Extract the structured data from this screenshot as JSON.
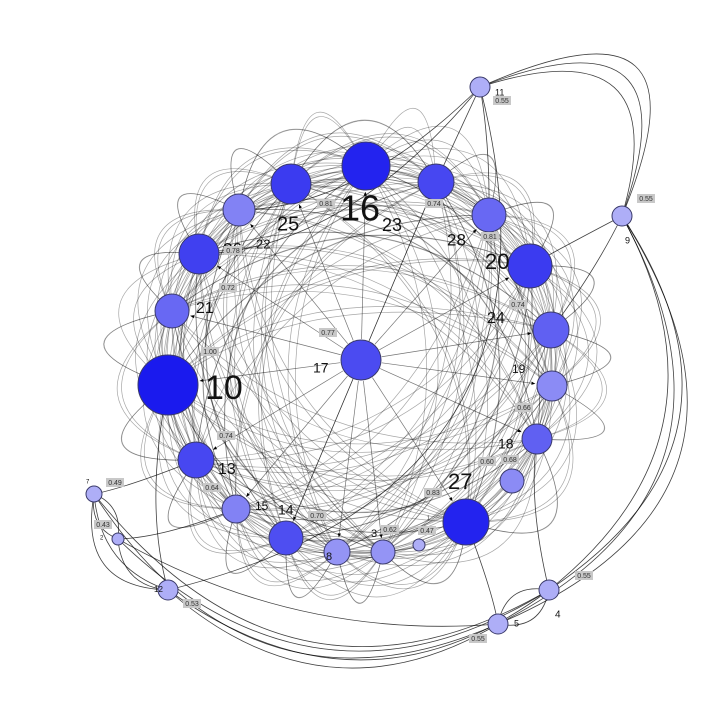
{
  "nodes": [
    {
      "id": "16",
      "label": "16",
      "weight": 0.95
    },
    {
      "id": "23",
      "label": "23",
      "weight": 0.74
    },
    {
      "id": "28",
      "label": "28",
      "weight": 0.55
    },
    {
      "id": "20",
      "label": "20",
      "weight": 0.81
    },
    {
      "id": "24",
      "label": "24",
      "weight": 0.6
    },
    {
      "id": "19",
      "label": "19",
      "weight": 0.35
    },
    {
      "id": "18",
      "label": "18",
      "weight": 0.6
    },
    {
      "id": "27",
      "label": "27",
      "weight": 0.95
    },
    {
      "id": "3",
      "label": "3",
      "weight": 0.3
    },
    {
      "id": "8",
      "label": "8",
      "weight": 0.3
    },
    {
      "id": "14",
      "label": "14",
      "weight": 0.7
    },
    {
      "id": "15",
      "label": "15",
      "weight": 0.4
    },
    {
      "id": "13",
      "label": "13",
      "weight": 0.74
    },
    {
      "id": "10",
      "label": "10",
      "weight": 1.0
    },
    {
      "id": "21",
      "label": "21",
      "weight": 0.55
    },
    {
      "id": "26",
      "label": "26",
      "weight": 0.78
    },
    {
      "id": "22",
      "label": "22",
      "weight": 0.4
    },
    {
      "id": "25",
      "label": "25",
      "weight": 0.81
    },
    {
      "id": "17",
      "label": "17",
      "weight": 0.72
    },
    {
      "id": "11",
      "label": "11",
      "weight": 0.15
    },
    {
      "id": "9",
      "label": "9",
      "weight": 0.15
    },
    {
      "id": "7",
      "label": "7",
      "weight": 0.15
    },
    {
      "id": "2",
      "label": "2",
      "weight": 0.15
    },
    {
      "id": "4",
      "label": "4",
      "weight": 0.15
    },
    {
      "id": "5",
      "label": "5",
      "weight": 0.15
    },
    {
      "id": "12",
      "label": "12",
      "weight": 0.15
    },
    {
      "id": "1",
      "label": "1",
      "weight": 0.15
    }
  ],
  "badges": [
    "0.81",
    "0.74",
    "0.81",
    "0.74",
    "0.66",
    "0.68",
    "0.60",
    "0.83",
    "0.47",
    "0.62",
    "0.70",
    "0.64",
    "0.74",
    "1.00",
    "0.72",
    "0.78",
    "0.77",
    "0.55",
    "0.55",
    "0.49",
    "0.43",
    "0.53",
    "0.55",
    "0.55"
  ],
  "colors": {
    "node_dark": "#1a1aee",
    "node_light": "#c8c8f8",
    "edge": "#000000",
    "badge": "#c8c8c8"
  }
}
